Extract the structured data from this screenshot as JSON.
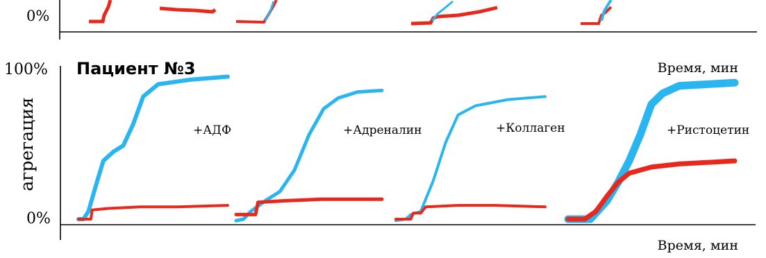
{
  "chart_data": [
    {
      "type": "line",
      "panel": "top-cropped",
      "ytick_bottom": "0%",
      "xlabel": "Время, мин",
      "colors": {
        "blue": "#29b6f0",
        "red": "#e8281c"
      }
    },
    {
      "type": "line",
      "title": "Пациент №3",
      "ylabel": "агрегация",
      "xlabel": "Время, мин",
      "yticks": [
        "100%",
        "0%"
      ],
      "ylim": [
        0,
        100
      ],
      "x_unit": "мин",
      "grid": false,
      "colors": {
        "blue": "#29b6f0",
        "red": "#e8281c"
      },
      "panels": [
        {
          "label": "+АДФ",
          "blue": [
            [
              0,
              0
            ],
            [
              2,
              0
            ],
            [
              4,
              5
            ],
            [
              7,
              22
            ],
            [
              10,
              38
            ],
            [
              14,
              44
            ],
            [
              18,
              48
            ],
            [
              22,
              62
            ],
            [
              26,
              80
            ],
            [
              32,
              88
            ],
            [
              45,
              91
            ],
            [
              60,
              93
            ]
          ],
          "red": [
            [
              0,
              0
            ],
            [
              3,
              0
            ],
            [
              5,
              0
            ],
            [
              5.5,
              6
            ],
            [
              12,
              7
            ],
            [
              25,
              8
            ],
            [
              40,
              8
            ],
            [
              60,
              9
            ]
          ]
        },
        {
          "label": "+Адреналин",
          "blue": [
            [
              0,
              -1
            ],
            [
              3,
              0
            ],
            [
              6,
              5
            ],
            [
              12,
              12
            ],
            [
              18,
              18
            ],
            [
              24,
              32
            ],
            [
              30,
              55
            ],
            [
              36,
              72
            ],
            [
              42,
              79
            ],
            [
              50,
              83
            ],
            [
              60,
              84
            ]
          ],
          "red": [
            [
              0,
              3
            ],
            [
              8,
              3
            ],
            [
              9,
              11
            ],
            [
              20,
              12
            ],
            [
              35,
              13
            ],
            [
              50,
              13
            ],
            [
              60,
              13
            ]
          ]
        },
        {
          "label": "+Коллаген",
          "blue": [
            [
              0,
              -1
            ],
            [
              4,
              0
            ],
            [
              6,
              3
            ],
            [
              10,
              5
            ],
            [
              15,
              25
            ],
            [
              20,
              50
            ],
            [
              25,
              68
            ],
            [
              32,
              74
            ],
            [
              45,
              78
            ],
            [
              60,
              80
            ]
          ],
          "red": [
            [
              0,
              0
            ],
            [
              6,
              0
            ],
            [
              7,
              4
            ],
            [
              10,
              4
            ],
            [
              12,
              8
            ],
            [
              25,
              9
            ],
            [
              40,
              9
            ],
            [
              60,
              8
            ]
          ]
        },
        {
          "label": "+Ристоцетин",
          "blue": [
            [
              0,
              0
            ],
            [
              8,
              0
            ],
            [
              14,
              12
            ],
            [
              18,
              24
            ],
            [
              22,
              38
            ],
            [
              26,
              55
            ],
            [
              30,
              75
            ],
            [
              34,
              82
            ],
            [
              40,
              87
            ],
            [
              50,
              88
            ],
            [
              60,
              89
            ]
          ],
          "red": [
            [
              0,
              0
            ],
            [
              6,
              0
            ],
            [
              10,
              5
            ],
            [
              14,
              15
            ],
            [
              18,
              24
            ],
            [
              22,
              30
            ],
            [
              30,
              34
            ],
            [
              40,
              36
            ],
            [
              50,
              37
            ],
            [
              60,
              38
            ]
          ]
        }
      ]
    }
  ]
}
